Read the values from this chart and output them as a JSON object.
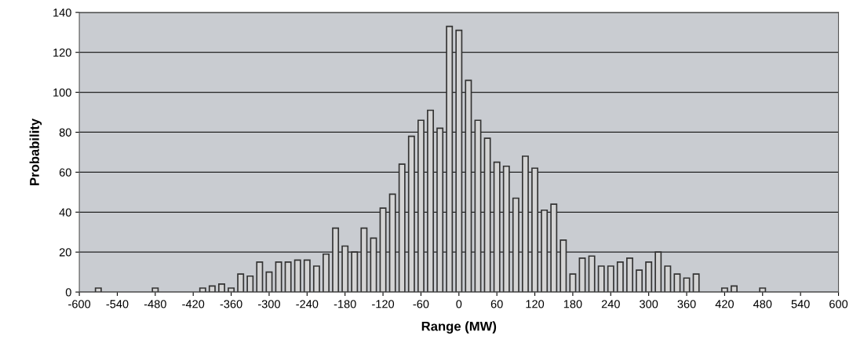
{
  "chart_data": {
    "type": "bar",
    "xlabel": "Range (MW)",
    "ylabel": "Probability",
    "x": [
      -570,
      -480,
      -405,
      -390,
      -375,
      -360,
      -345,
      -330,
      -315,
      -300,
      -285,
      -270,
      -255,
      -240,
      -225,
      -210,
      -195,
      -180,
      -165,
      -150,
      -135,
      -120,
      -105,
      -90,
      -75,
      -60,
      -45,
      -30,
      -15,
      0,
      15,
      30,
      45,
      60,
      75,
      90,
      105,
      120,
      135,
      150,
      165,
      180,
      195,
      210,
      225,
      240,
      255,
      270,
      285,
      300,
      315,
      330,
      345,
      360,
      375,
      420,
      435,
      480
    ],
    "values": [
      2,
      2,
      2,
      3,
      4,
      2,
      9,
      8,
      15,
      10,
      15,
      15,
      16,
      16,
      13,
      19,
      32,
      23,
      20,
      32,
      27,
      42,
      49,
      64,
      78,
      86,
      91,
      82,
      133,
      131,
      106,
      86,
      77,
      65,
      63,
      47,
      68,
      62,
      41,
      44,
      26,
      9,
      17,
      18,
      13,
      13,
      15,
      17,
      11,
      15,
      20,
      13,
      9,
      7,
      9,
      2,
      3,
      2
    ],
    "color": "#d4d4d4",
    "xlim": [
      -600,
      600
    ],
    "xticks": [
      -600,
      -540,
      -480,
      -420,
      -360,
      -300,
      -240,
      -180,
      -120,
      -60,
      0,
      60,
      120,
      180,
      240,
      300,
      360,
      420,
      480,
      540,
      600
    ],
    "ylim": [
      0,
      140
    ],
    "yticks": [
      0,
      20,
      40,
      60,
      80,
      100,
      120,
      140
    ],
    "grid": "y"
  }
}
